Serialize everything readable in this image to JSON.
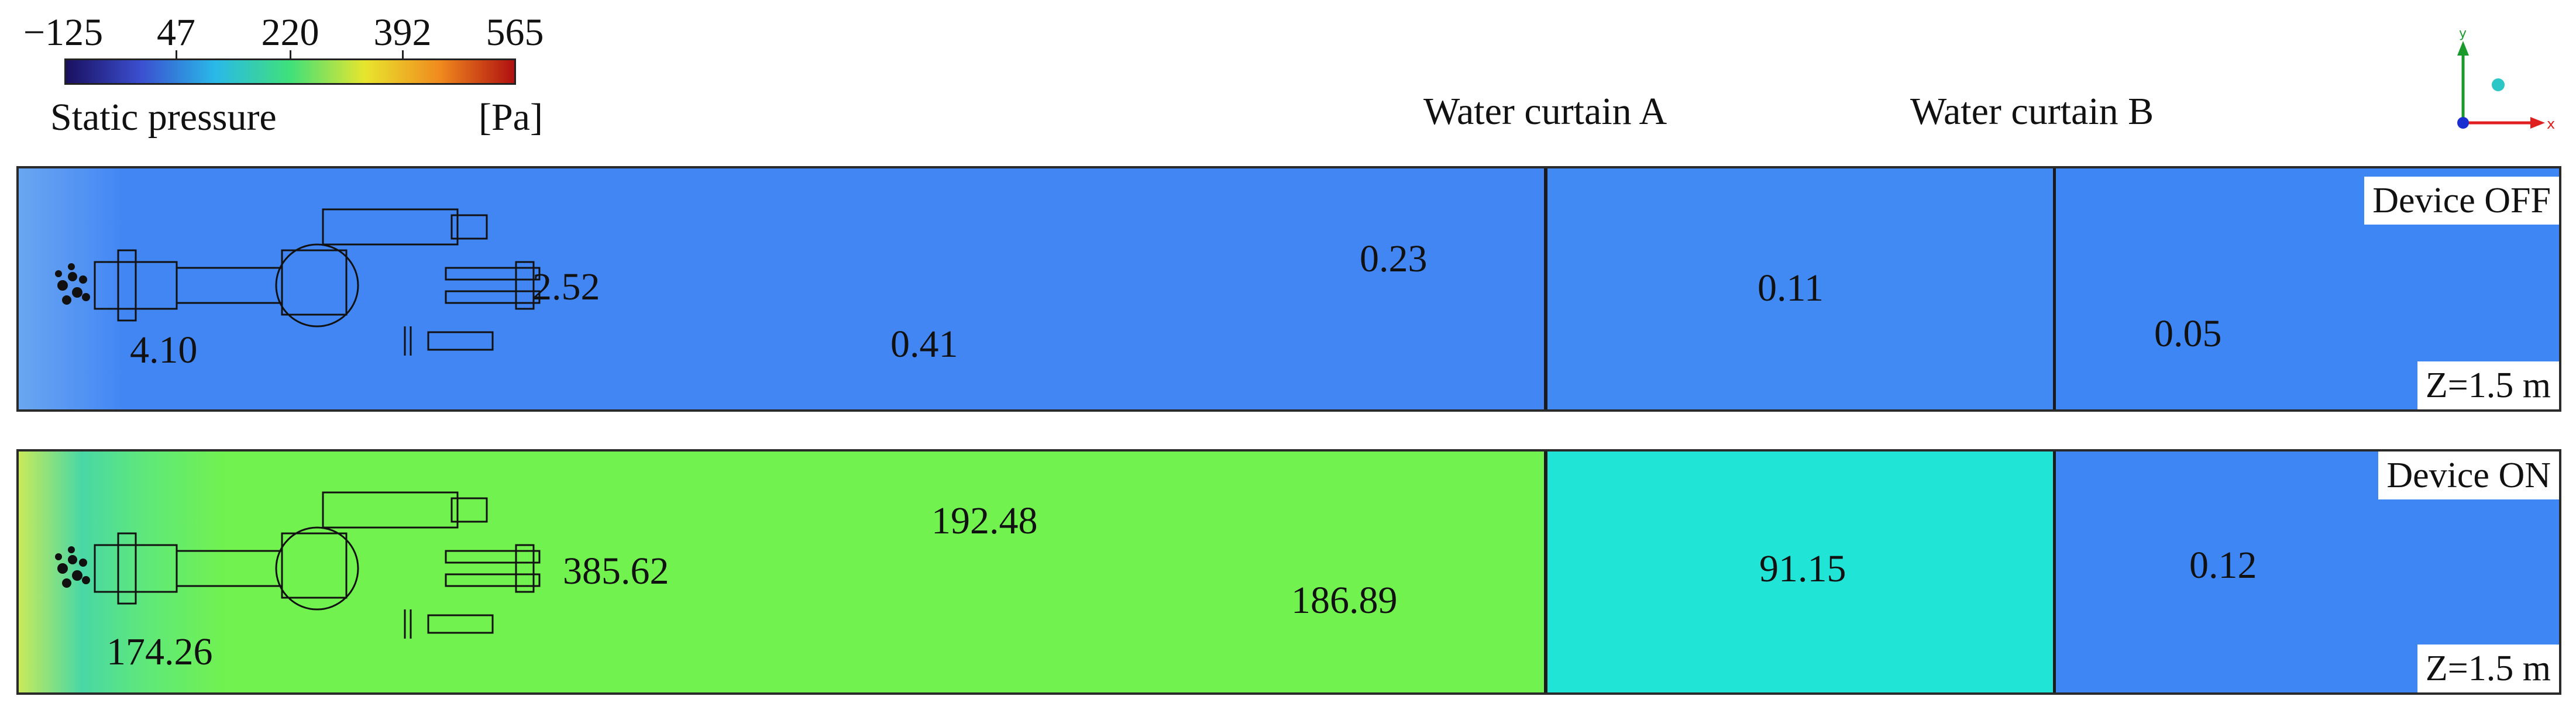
{
  "legend": {
    "ticks": [
      "−125",
      "47",
      "220",
      "392",
      "565"
    ],
    "title": "Static pressure",
    "unit": "[Pa]",
    "colors": [
      "#1a1060",
      "#3b4fd0",
      "#29b9e8",
      "#3fe07a",
      "#e8e52e",
      "#f08a1e",
      "#b01010"
    ]
  },
  "curtains": {
    "a": "Water curtain A",
    "b": "Water curtain B"
  },
  "axes_triad": {
    "x": "x",
    "y": "y"
  },
  "panels": [
    {
      "state": "Device OFF",
      "plane": "Z=1.5 m",
      "colors": {
        "tunnel": "#4286f4",
        "curtain_a_zone": "#4189f3",
        "curtain_b_zone": "#3f86f5",
        "near_face": "#6aa6f0"
      },
      "values": [
        "4.10",
        "2.52",
        "0.41",
        "0.23",
        "0.11",
        "0.05"
      ]
    },
    {
      "state": "Device ON",
      "plane": "Z=1.5 m",
      "colors": {
        "tunnel": "#72f24e",
        "curtain_a_zone": "#20e4d6",
        "curtain_b_zone": "#3f86f5",
        "near_face": "#49d7a6"
      },
      "values": [
        "174.26",
        "385.62",
        "192.48",
        "186.89",
        "91.15",
        "0.12"
      ]
    }
  ]
}
